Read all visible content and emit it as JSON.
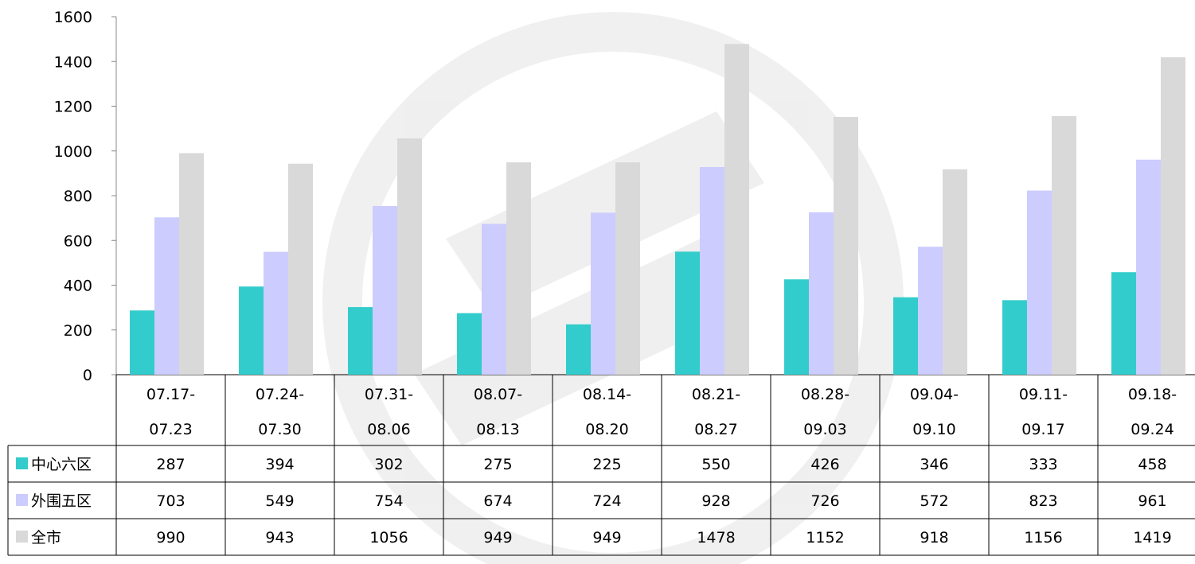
{
  "chart_data": {
    "type": "bar",
    "categories": [
      [
        "07.17-",
        "07.23"
      ],
      [
        "07.24-",
        "07.30"
      ],
      [
        "07.31-",
        "08.06"
      ],
      [
        "08.07-",
        "08.13"
      ],
      [
        "08.14-",
        "08.20"
      ],
      [
        "08.21-",
        "08.27"
      ],
      [
        "08.28-",
        "09.03"
      ],
      [
        "09.04-",
        "09.10"
      ],
      [
        "09.11-",
        "09.17"
      ],
      [
        "09.18-",
        "09.24"
      ]
    ],
    "series": [
      {
        "name": "中心六区",
        "color": "#33CCCC",
        "values": [
          287,
          394,
          302,
          275,
          225,
          550,
          426,
          346,
          333,
          458
        ]
      },
      {
        "name": "外围五区",
        "color": "#CCCCFF",
        "values": [
          703,
          549,
          754,
          674,
          724,
          928,
          726,
          572,
          823,
          961
        ]
      },
      {
        "name": "全市",
        "color": "#D9D9D9",
        "values": [
          990,
          943,
          1056,
          949,
          949,
          1478,
          1152,
          918,
          1156,
          1419
        ]
      }
    ],
    "ylim": [
      0,
      1600
    ],
    "yticks": [
      0,
      200,
      400,
      600,
      800,
      1000,
      1200,
      1400,
      1600
    ],
    "grid": false,
    "legend": "data-table-left"
  }
}
